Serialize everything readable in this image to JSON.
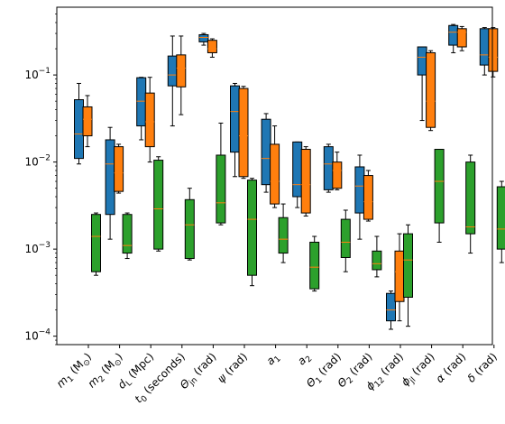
{
  "chart_data": {
    "type": "box",
    "title": "",
    "xlabel": "",
    "ylabel": "",
    "yscale": "log",
    "ylim": [
      8e-05,
      0.6
    ],
    "yticks": [
      {
        "value": 0.0001,
        "base": "10",
        "exp": "−4"
      },
      {
        "value": 0.001,
        "base": "10",
        "exp": "−3"
      },
      {
        "value": 0.01,
        "base": "10",
        "exp": "−2"
      },
      {
        "value": 0.1,
        "base": "10",
        "exp": "−1"
      }
    ],
    "categories": [
      {
        "pre": "m",
        "sub": "1",
        "post": " (M",
        "sub2": "⊙",
        "post2": ")"
      },
      {
        "pre": "m",
        "sub": "2",
        "post": " (M",
        "sub2": "⊙",
        "post2": ")"
      },
      {
        "pre": "d",
        "sub": "L",
        "post": " (Mpc)",
        "sub2": "",
        "post2": ""
      },
      {
        "pre": "t",
        "sub": "0",
        "post": " (seconds)",
        "sub2": "",
        "post2": ""
      },
      {
        "pre": "Θ",
        "sub": "jn",
        "post": " (rad)",
        "sub2": "",
        "post2": ""
      },
      {
        "pre": "ψ",
        "sub": "",
        "post": " (rad)",
        "sub2": "",
        "post2": ""
      },
      {
        "pre": "a",
        "sub": "1",
        "post": "",
        "sub2": "",
        "post2": ""
      },
      {
        "pre": "a",
        "sub": "2",
        "post": "",
        "sub2": "",
        "post2": ""
      },
      {
        "pre": "Θ",
        "sub": "1",
        "post": " (rad)",
        "sub2": "",
        "post2": ""
      },
      {
        "pre": "Θ",
        "sub": "2",
        "post": " (rad)",
        "sub2": "",
        "post2": ""
      },
      {
        "pre": "ϕ",
        "sub": "12",
        "post": " (rad)",
        "sub2": "",
        "post2": ""
      },
      {
        "pre": "ϕ",
        "sub": "jl",
        "post": " (rad)",
        "sub2": "",
        "post2": ""
      },
      {
        "pre": "α",
        "sub": "",
        "post": " (rad)",
        "sub2": "",
        "post2": ""
      },
      {
        "pre": "δ",
        "sub": "",
        "post": " (rad)",
        "sub2": "",
        "post2": ""
      }
    ],
    "series": [
      {
        "color": "#1f77b4",
        "boxes": [
          {
            "wlo": 0.0095,
            "q1": 0.011,
            "med": 0.021,
            "q3": 0.052,
            "whi": 0.08
          },
          {
            "wlo": 0.0013,
            "q1": 0.0025,
            "med": 0.0095,
            "q3": 0.018,
            "whi": 0.025
          },
          {
            "wlo": 0.018,
            "q1": 0.026,
            "med": 0.05,
            "q3": 0.093,
            "whi": 0.094
          },
          {
            "wlo": 0.026,
            "q1": 0.075,
            "med": 0.1,
            "q3": 0.165,
            "whi": 0.28
          },
          {
            "wlo": 0.22,
            "q1": 0.24,
            "med": 0.27,
            "q3": 0.29,
            "whi": 0.3
          },
          {
            "wlo": 0.0068,
            "q1": 0.013,
            "med": 0.038,
            "q3": 0.075,
            "whi": 0.08
          },
          {
            "wlo": 0.0045,
            "q1": 0.0055,
            "med": 0.011,
            "q3": 0.031,
            "whi": 0.036
          },
          {
            "wlo": 0.003,
            "q1": 0.004,
            "med": 0.0055,
            "q3": 0.017,
            "whi": 0.017
          },
          {
            "wlo": 0.0045,
            "q1": 0.0048,
            "med": 0.0095,
            "q3": 0.015,
            "whi": 0.016
          },
          {
            "wlo": 0.0013,
            "q1": 0.0026,
            "med": 0.0053,
            "q3": 0.0088,
            "whi": 0.012
          },
          {
            "wlo": 0.00012,
            "q1": 0.00015,
            "med": 0.0002,
            "q3": 0.00031,
            "whi": 0.00033
          },
          {
            "wlo": 0.03,
            "q1": 0.1,
            "med": 0.16,
            "q3": 0.21,
            "whi": 0.21
          },
          {
            "wlo": 0.18,
            "q1": 0.22,
            "med": 0.31,
            "q3": 0.37,
            "whi": 0.38
          },
          {
            "wlo": 0.1,
            "q1": 0.13,
            "med": 0.17,
            "q3": 0.34,
            "whi": 0.35
          }
        ]
      },
      {
        "color": "#ff7f0e",
        "boxes": [
          {
            "wlo": 0.015,
            "q1": 0.02,
            "med": 0.031,
            "q3": 0.043,
            "whi": 0.058
          },
          {
            "wlo": 0.0044,
            "q1": 0.0046,
            "med": 0.0075,
            "q3": 0.015,
            "whi": 0.016
          },
          {
            "wlo": 0.01,
            "q1": 0.015,
            "med": 0.029,
            "q3": 0.062,
            "whi": 0.094
          },
          {
            "wlo": 0.035,
            "q1": 0.073,
            "med": 0.12,
            "q3": 0.17,
            "whi": 0.28
          },
          {
            "wlo": 0.16,
            "q1": 0.18,
            "med": 0.2,
            "q3": 0.25,
            "whi": 0.26
          },
          {
            "wlo": 0.0065,
            "q1": 0.0068,
            "med": 0.02,
            "q3": 0.07,
            "whi": 0.074
          },
          {
            "wlo": 0.003,
            "q1": 0.0033,
            "med": 0.006,
            "q3": 0.016,
            "whi": 0.026
          },
          {
            "wlo": 0.0024,
            "q1": 0.0026,
            "med": 0.0055,
            "q3": 0.014,
            "whi": 0.015
          },
          {
            "wlo": 0.0048,
            "q1": 0.005,
            "med": 0.008,
            "q3": 0.01,
            "whi": 0.013
          },
          {
            "wlo": 0.0021,
            "q1": 0.0022,
            "med": 0.0035,
            "q3": 0.007,
            "whi": 0.008
          },
          {
            "wlo": 0.00015,
            "q1": 0.00025,
            "med": 0.00055,
            "q3": 0.00095,
            "whi": 0.0015
          },
          {
            "wlo": 0.023,
            "q1": 0.025,
            "med": 0.05,
            "q3": 0.18,
            "whi": 0.19
          },
          {
            "wlo": 0.19,
            "q1": 0.21,
            "med": 0.31,
            "q3": 0.34,
            "whi": 0.36
          },
          {
            "wlo": 0.095,
            "q1": 0.11,
            "med": 0.16,
            "q3": 0.34,
            "whi": 0.35
          }
        ]
      },
      {
        "color": "#2ca02c",
        "boxes": [
          {
            "wlo": 0.0005,
            "q1": 0.00055,
            "med": 0.0014,
            "q3": 0.0025,
            "whi": 0.0026
          },
          {
            "wlo": 0.00078,
            "q1": 0.0009,
            "med": 0.0011,
            "q3": 0.0025,
            "whi": 0.0026
          },
          {
            "wlo": 0.00095,
            "q1": 0.001,
            "med": 0.0029,
            "q3": 0.0105,
            "whi": 0.0115
          },
          {
            "wlo": 0.00075,
            "q1": 0.00078,
            "med": 0.0019,
            "q3": 0.0037,
            "whi": 0.005
          },
          {
            "wlo": 0.0019,
            "q1": 0.002,
            "med": 0.0034,
            "q3": 0.012,
            "whi": 0.028
          },
          {
            "wlo": 0.00038,
            "q1": 0.0005,
            "med": 0.0022,
            "q3": 0.0062,
            "whi": 0.0065
          },
          {
            "wlo": 0.0007,
            "q1": 0.0009,
            "med": 0.0013,
            "q3": 0.0023,
            "whi": 0.0033
          },
          {
            "wlo": 0.00033,
            "q1": 0.00035,
            "med": 0.00062,
            "q3": 0.0012,
            "whi": 0.0014
          },
          {
            "wlo": 0.00055,
            "q1": 0.0008,
            "med": 0.0012,
            "q3": 0.0022,
            "whi": 0.0028
          },
          {
            "wlo": 0.00048,
            "q1": 0.00058,
            "med": 0.00068,
            "q3": 0.00095,
            "whi": 0.0014
          },
          {
            "wlo": 0.00013,
            "q1": 0.00028,
            "med": 0.00075,
            "q3": 0.0015,
            "whi": 0.0019
          },
          {
            "wlo": 0.0012,
            "q1": 0.002,
            "med": 0.006,
            "q3": 0.014,
            "whi": 0.014
          },
          {
            "wlo": 0.0009,
            "q1": 0.0015,
            "med": 0.0018,
            "q3": 0.01,
            "whi": 0.012
          },
          {
            "wlo": 0.0007,
            "q1": 0.001,
            "med": 0.0017,
            "q3": 0.0052,
            "whi": 0.006
          }
        ]
      }
    ],
    "median_color": "#ff7f0e",
    "grid": false,
    "legend": "none"
  }
}
